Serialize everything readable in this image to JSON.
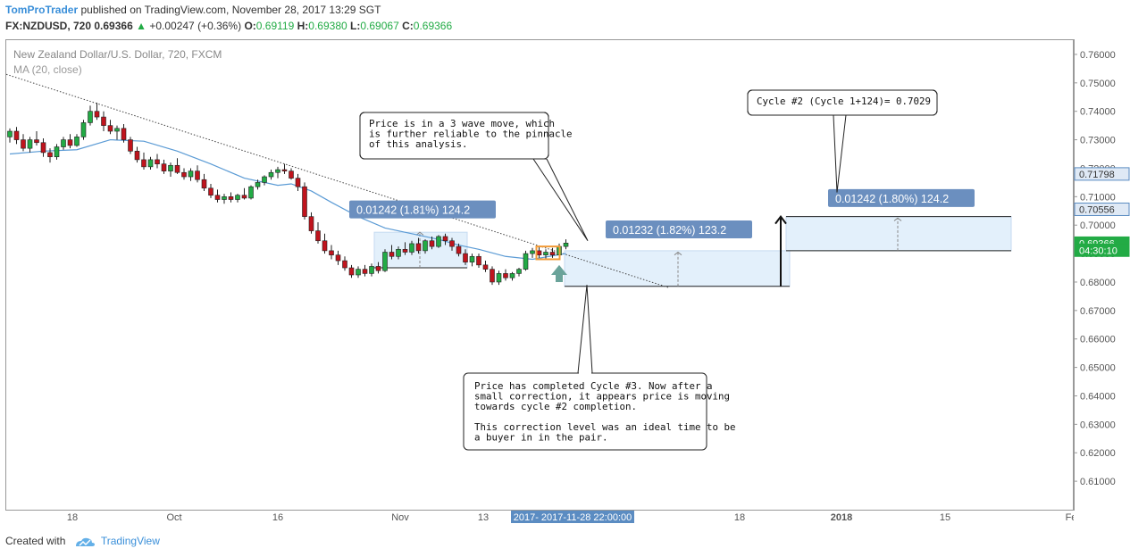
{
  "header": {
    "author": "TomProTrader",
    "published": "published on TradingView.com, November 28, 2017 13:29 SGT",
    "symbol": "FX:NZDUSD, 720",
    "last": "0.69366",
    "arrow": "▲",
    "change": "+0.00247 (+0.36%)",
    "o_label": "O:",
    "o_value": "0.69119",
    "h_label": "H:",
    "h_value": "0.69380",
    "l_label": "L:",
    "l_value": "0.69067",
    "c_label": "C:",
    "c_value": "0.69366"
  },
  "legend": {
    "instrument": "New Zealand Dollar/U.S. Dollar, 720, FXCM",
    "indicator": "MA (20, close)"
  },
  "footer": {
    "created_with": "Created with",
    "brand": "TradingView"
  },
  "colors": {
    "bull": "#22ab45",
    "bear": "#c0141d",
    "ma": "#5b9bd5",
    "box_fill": "#e3f0fb",
    "label_bg": "#6b8fbf",
    "axis_highlight": "#5b8cc2",
    "arrow": "#6aa39a"
  },
  "chart_data": {
    "type": "candlestick",
    "title": "New Zealand Dollar/U.S. Dollar, 720, FXCM",
    "ylim": [
      0.6,
      0.765
    ],
    "yticks": [
      "0.76000",
      "0.75000",
      "0.74000",
      "0.73000",
      "0.72000",
      "0.71000",
      "0.70000",
      "0.69000",
      "0.68000",
      "0.67000",
      "0.66000",
      "0.65000",
      "0.64000",
      "0.63000",
      "0.62000",
      "0.61000"
    ],
    "xticks": [
      "18",
      "Oct",
      "16",
      "Nov",
      "13",
      "18",
      "2018",
      "15",
      "Fe"
    ],
    "x_crosshair_label": "2017- 2017-11-28 22:00:00",
    "price_tags": [
      {
        "value": 0.71798,
        "label": "0.71798",
        "style": "outline"
      },
      {
        "value": 0.70556,
        "label": "0.70556",
        "style": "outline"
      },
      {
        "value": 0.69366,
        "label": "0.69366",
        "style": "green"
      },
      {
        "value": 0.6912,
        "label": "04:30:10",
        "style": "green"
      }
    ],
    "candles": [
      [
        0.731,
        0.734,
        0.729,
        0.733
      ],
      [
        0.733,
        0.7345,
        0.7285,
        0.73
      ],
      [
        0.73,
        0.732,
        0.726,
        0.727
      ],
      [
        0.727,
        0.731,
        0.7255,
        0.73
      ],
      [
        0.73,
        0.733,
        0.728,
        0.729
      ],
      [
        0.729,
        0.7305,
        0.724,
        0.7255
      ],
      [
        0.7255,
        0.727,
        0.722,
        0.724
      ],
      [
        0.724,
        0.7285,
        0.723,
        0.7275
      ],
      [
        0.7275,
        0.731,
        0.7265,
        0.73
      ],
      [
        0.73,
        0.732,
        0.727,
        0.728
      ],
      [
        0.728,
        0.732,
        0.7275,
        0.731
      ],
      [
        0.731,
        0.737,
        0.73,
        0.736
      ],
      [
        0.736,
        0.742,
        0.735,
        0.74
      ],
      [
        0.74,
        0.743,
        0.737,
        0.738
      ],
      [
        0.738,
        0.74,
        0.733,
        0.735
      ],
      [
        0.735,
        0.737,
        0.732,
        0.733
      ],
      [
        0.733,
        0.735,
        0.73,
        0.734
      ],
      [
        0.734,
        0.7355,
        0.729,
        0.73
      ],
      [
        0.73,
        0.731,
        0.725,
        0.726
      ],
      [
        0.726,
        0.7275,
        0.722,
        0.723
      ],
      [
        0.723,
        0.7255,
        0.7195,
        0.7205
      ],
      [
        0.7205,
        0.724,
        0.7195,
        0.723
      ],
      [
        0.723,
        0.725,
        0.72,
        0.7215
      ],
      [
        0.7215,
        0.723,
        0.718,
        0.719
      ],
      [
        0.719,
        0.722,
        0.717,
        0.721
      ],
      [
        0.721,
        0.7235,
        0.718,
        0.7185
      ],
      [
        0.7185,
        0.72,
        0.716,
        0.717
      ],
      [
        0.717,
        0.72,
        0.7155,
        0.719
      ],
      [
        0.719,
        0.721,
        0.715,
        0.716
      ],
      [
        0.716,
        0.718,
        0.712,
        0.713
      ],
      [
        0.713,
        0.7145,
        0.7095,
        0.7105
      ],
      [
        0.7105,
        0.7125,
        0.708,
        0.709
      ],
      [
        0.709,
        0.711,
        0.7075,
        0.71
      ],
      [
        0.71,
        0.7115,
        0.708,
        0.709
      ],
      [
        0.709,
        0.711,
        0.708,
        0.7105
      ],
      [
        0.7105,
        0.713,
        0.709,
        0.7095
      ],
      [
        0.7095,
        0.714,
        0.709,
        0.7135
      ],
      [
        0.7135,
        0.716,
        0.7125,
        0.715
      ],
      [
        0.715,
        0.7175,
        0.714,
        0.717
      ],
      [
        0.717,
        0.7195,
        0.716,
        0.7185
      ],
      [
        0.7185,
        0.7205,
        0.7165,
        0.7195
      ],
      [
        0.7195,
        0.7215,
        0.718,
        0.719
      ],
      [
        0.719,
        0.72,
        0.716,
        0.7165
      ],
      [
        0.7165,
        0.718,
        0.712,
        0.7135
      ],
      [
        0.7135,
        0.715,
        0.702,
        0.703
      ],
      [
        0.703,
        0.7045,
        0.697,
        0.698
      ],
      [
        0.698,
        0.701,
        0.6935,
        0.6945
      ],
      [
        0.6945,
        0.697,
        0.69,
        0.691
      ],
      [
        0.691,
        0.693,
        0.688,
        0.6895
      ],
      [
        0.6895,
        0.691,
        0.686,
        0.6875
      ],
      [
        0.6875,
        0.689,
        0.684,
        0.685
      ],
      [
        0.685,
        0.686,
        0.6815,
        0.6825
      ],
      [
        0.6825,
        0.6855,
        0.6815,
        0.6845
      ],
      [
        0.6845,
        0.686,
        0.682,
        0.683
      ],
      [
        0.683,
        0.6865,
        0.682,
        0.6855
      ],
      [
        0.6855,
        0.687,
        0.683,
        0.684
      ],
      [
        0.684,
        0.6915,
        0.6835,
        0.6905
      ],
      [
        0.6905,
        0.693,
        0.688,
        0.689
      ],
      [
        0.689,
        0.6925,
        0.688,
        0.6915
      ],
      [
        0.6915,
        0.694,
        0.6895,
        0.6905
      ],
      [
        0.6905,
        0.6945,
        0.6895,
        0.6935
      ],
      [
        0.6935,
        0.6955,
        0.69,
        0.691
      ],
      [
        0.691,
        0.695,
        0.69,
        0.6945
      ],
      [
        0.6945,
        0.696,
        0.6915,
        0.6925
      ],
      [
        0.6925,
        0.6965,
        0.692,
        0.696
      ],
      [
        0.696,
        0.697,
        0.693,
        0.6945
      ],
      [
        0.6945,
        0.6955,
        0.691,
        0.6925
      ],
      [
        0.6925,
        0.6935,
        0.689,
        0.69
      ],
      [
        0.69,
        0.6915,
        0.686,
        0.687
      ],
      [
        0.687,
        0.69,
        0.6855,
        0.689
      ],
      [
        0.689,
        0.69,
        0.685,
        0.686
      ],
      [
        0.686,
        0.6875,
        0.6835,
        0.6845
      ],
      [
        0.6845,
        0.6855,
        0.679,
        0.68
      ],
      [
        0.68,
        0.684,
        0.679,
        0.683
      ],
      [
        0.683,
        0.6845,
        0.6805,
        0.6815
      ],
      [
        0.6815,
        0.6835,
        0.6805,
        0.683
      ],
      [
        0.683,
        0.685,
        0.682,
        0.6845
      ],
      [
        0.6845,
        0.691,
        0.684,
        0.69
      ],
      [
        0.69,
        0.692,
        0.6885,
        0.691
      ],
      [
        0.691,
        0.6925,
        0.6885,
        0.6895
      ],
      [
        0.6895,
        0.6915,
        0.688,
        0.6905
      ],
      [
        0.6905,
        0.692,
        0.6885,
        0.6895
      ],
      [
        0.6895,
        0.6935,
        0.689,
        0.6925
      ],
      [
        0.6925,
        0.695,
        0.6915,
        0.6937
      ]
    ],
    "ma": [
      [
        0,
        0.725
      ],
      [
        5,
        0.726
      ],
      [
        10,
        0.7265
      ],
      [
        15,
        0.73
      ],
      [
        20,
        0.7295
      ],
      [
        25,
        0.726
      ],
      [
        30,
        0.7215
      ],
      [
        35,
        0.7165
      ],
      [
        40,
        0.714
      ],
      [
        42,
        0.7145
      ],
      [
        45,
        0.712
      ],
      [
        48,
        0.708
      ],
      [
        52,
        0.703
      ],
      [
        56,
        0.699
      ],
      [
        60,
        0.697
      ],
      [
        64,
        0.695
      ],
      [
        67,
        0.693
      ],
      [
        70,
        0.6915
      ],
      [
        74,
        0.689
      ],
      [
        78,
        0.688
      ],
      [
        83,
        0.69
      ]
    ],
    "trendline": [
      [
        0.753,
        0
      ],
      [
        0.678,
        1
      ]
    ],
    "annotations": [
      {
        "kind": "measure",
        "text": "0.01242 (1.81%) 124.2"
      },
      {
        "kind": "measure",
        "text": "0.01232 (1.82%) 123.2"
      },
      {
        "kind": "measure",
        "text": "0.01242 (1.80%) 124.2"
      }
    ]
  },
  "callouts": {
    "wave": [
      "Price is in a 3 wave move, which",
      "is further reliable to the pinnacle",
      "of this analysis."
    ],
    "cycle": [
      "Cycle #2 (Cycle 1+124)= 0.7029"
    ],
    "completed": [
      "Price has completed Cycle #3. Now after a",
      "small correction, it appears price is moving",
      "towards cycle #2 completion.",
      "",
      "This correction level was an ideal time to be",
      "a buyer in in the pair."
    ]
  }
}
